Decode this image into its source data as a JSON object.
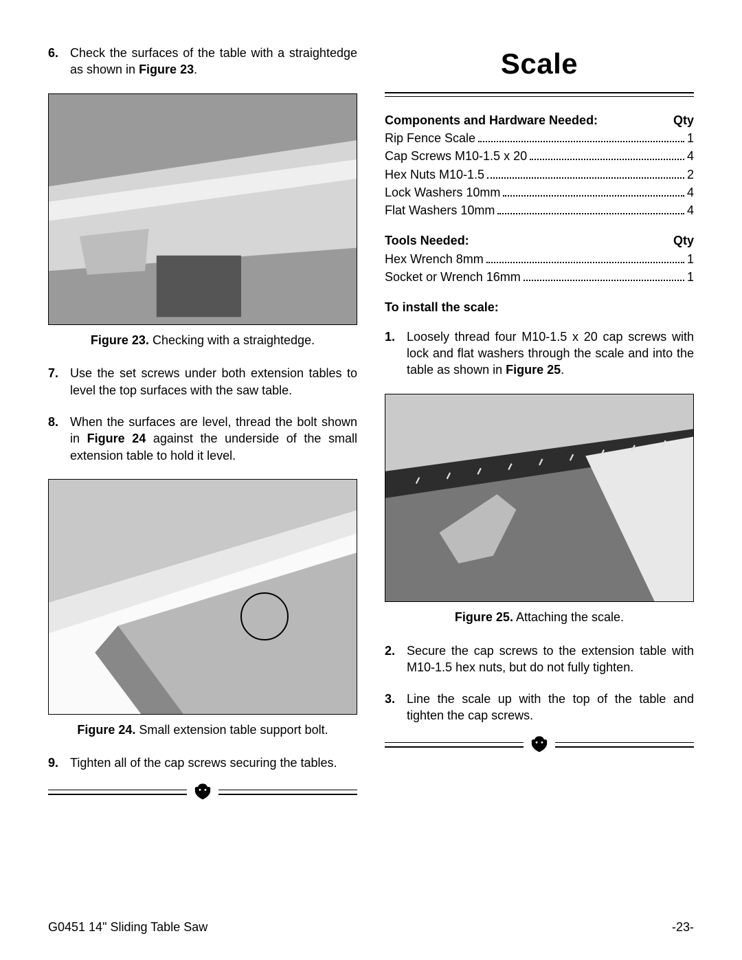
{
  "left": {
    "steps_a": [
      {
        "n": "6.",
        "html": "Check the surfaces of the table with a straightedge as shown in <b>Figure 23</b>."
      }
    ],
    "fig23_caption_html": "<b>Figure 23.</b> Checking with a straightedge.",
    "steps_b": [
      {
        "n": "7.",
        "html": "Use the set screws under both extension tables to level the top surfaces with the saw table."
      },
      {
        "n": "8.",
        "html": "When the surfaces are level, thread the bolt shown in <b>Figure 24</b> against the underside of the small extension table to hold it level."
      }
    ],
    "fig24_caption_html": "<b>Figure 24.</b> Small extension table support bolt.",
    "steps_c": [
      {
        "n": "9.",
        "html": "Tighten all of the cap screws securing the tables."
      }
    ]
  },
  "right": {
    "title": "Scale",
    "components_header": {
      "left": "Components and Hardware Needed:",
      "right": "Qty"
    },
    "components": [
      {
        "label": "Rip Fence Scale",
        "qty": "1"
      },
      {
        "label": "Cap Screws M10-1.5 x 20",
        "qty": "4"
      },
      {
        "label": "Hex Nuts M10-1.5",
        "qty": "2"
      },
      {
        "label": "Lock Washers 10mm",
        "qty": "4"
      },
      {
        "label": "Flat Washers 10mm",
        "qty": "4"
      }
    ],
    "tools_header": {
      "left": "Tools Needed:",
      "right": "Qty"
    },
    "tools": [
      {
        "label": "Hex Wrench 8mm",
        "qty": "1"
      },
      {
        "label": "Socket or Wrench 16mm",
        "qty": "1"
      }
    ],
    "install_header": "To install the scale:",
    "steps_a": [
      {
        "n": "1.",
        "html": "Loosely thread four M10-1.5 x 20 cap screws with lock and flat washers through the scale and into the table as shown in <b>Figure 25</b>."
      }
    ],
    "fig25_caption_html": "<b>Figure 25.</b> Attaching the scale.",
    "steps_b": [
      {
        "n": "2.",
        "html": "Secure the cap screws to the extension table with M10-1.5 hex nuts, but do not fully tighten."
      },
      {
        "n": "3.",
        "html": "Line the scale up with the top of the table and tighten the cap screws."
      }
    ]
  },
  "footer": {
    "left": "G0451 14\" Sliding Table Saw",
    "right": "-23-"
  },
  "colors": {
    "text": "#000000",
    "rule": "#000000",
    "figure_bg_light": "#d8d8d8",
    "figure_bg_dark": "#707070"
  }
}
